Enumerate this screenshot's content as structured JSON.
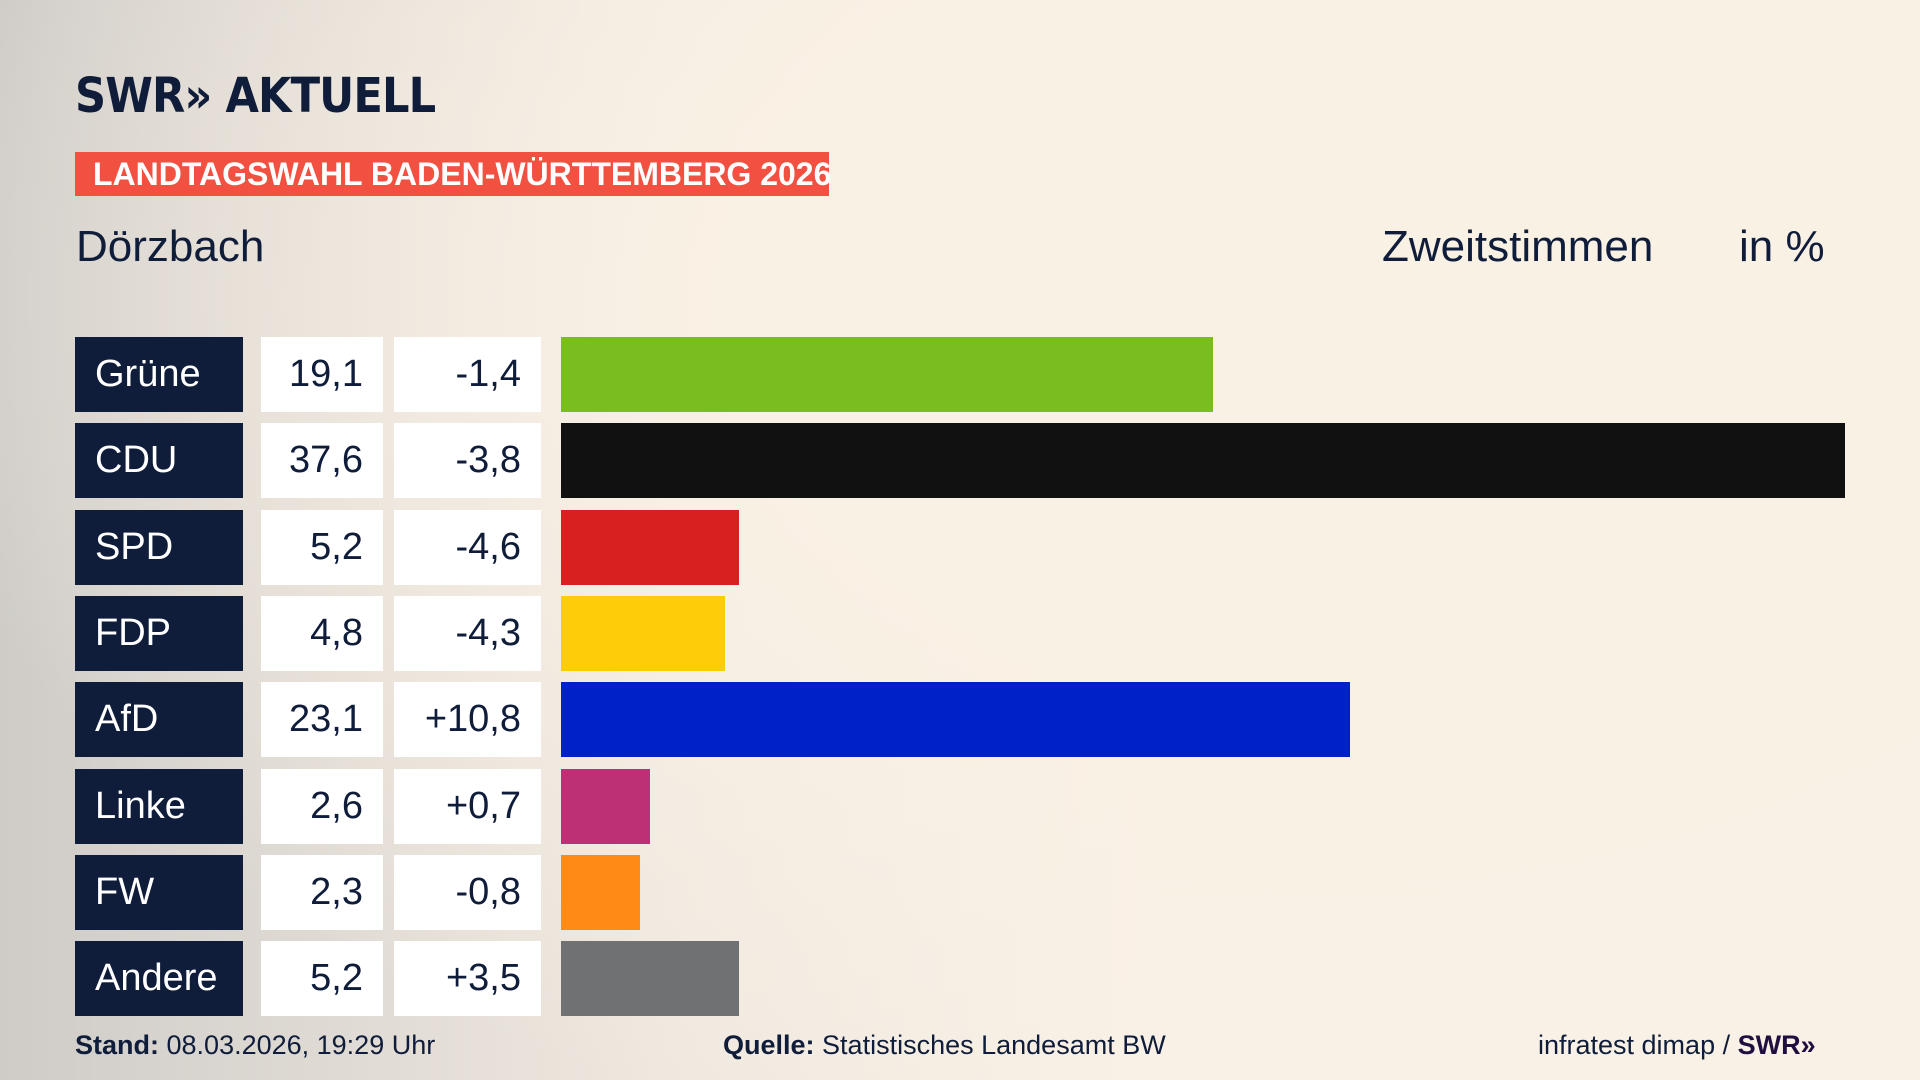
{
  "header": {
    "logo": "SWR» AKTUELL",
    "banner": "LANDTAGSWAHL BADEN-WÜRTTEMBERG 2026",
    "place": "Dörzbach",
    "metric": "Zweitstimmen",
    "unit": "in %"
  },
  "chart_data": {
    "type": "bar",
    "orientation": "horizontal",
    "categories": [
      "Grüne",
      "CDU",
      "SPD",
      "FDP",
      "AfD",
      "Linke",
      "FW",
      "Andere"
    ],
    "values": [
      19.1,
      37.6,
      5.2,
      4.8,
      23.1,
      2.6,
      2.3,
      5.2
    ],
    "value_labels": [
      "19,1",
      "37,6",
      "5,2",
      "4,8",
      "23,1",
      "2,6",
      "2,3",
      "5,2"
    ],
    "change_labels": [
      "-1,4",
      "-3,8",
      "-4,6",
      "-4,3",
      "+10,8",
      "+0,7",
      "-0,8",
      "+3,5"
    ],
    "colors": [
      "#7abd1f",
      "#111111",
      "#d7201f",
      "#fecd0a",
      "#0021c7",
      "#bd3075",
      "#fe8b16",
      "#707172"
    ],
    "xlim": [
      0,
      37.6
    ]
  },
  "footer": {
    "stand_label": "Stand:",
    "stand": "08.03.2026, 19:29 Uhr",
    "source_label": "Quelle:",
    "source": "Statistisches Landesamt BW",
    "credit": "infratest dimap / ",
    "credit_logo": "SWR»"
  }
}
